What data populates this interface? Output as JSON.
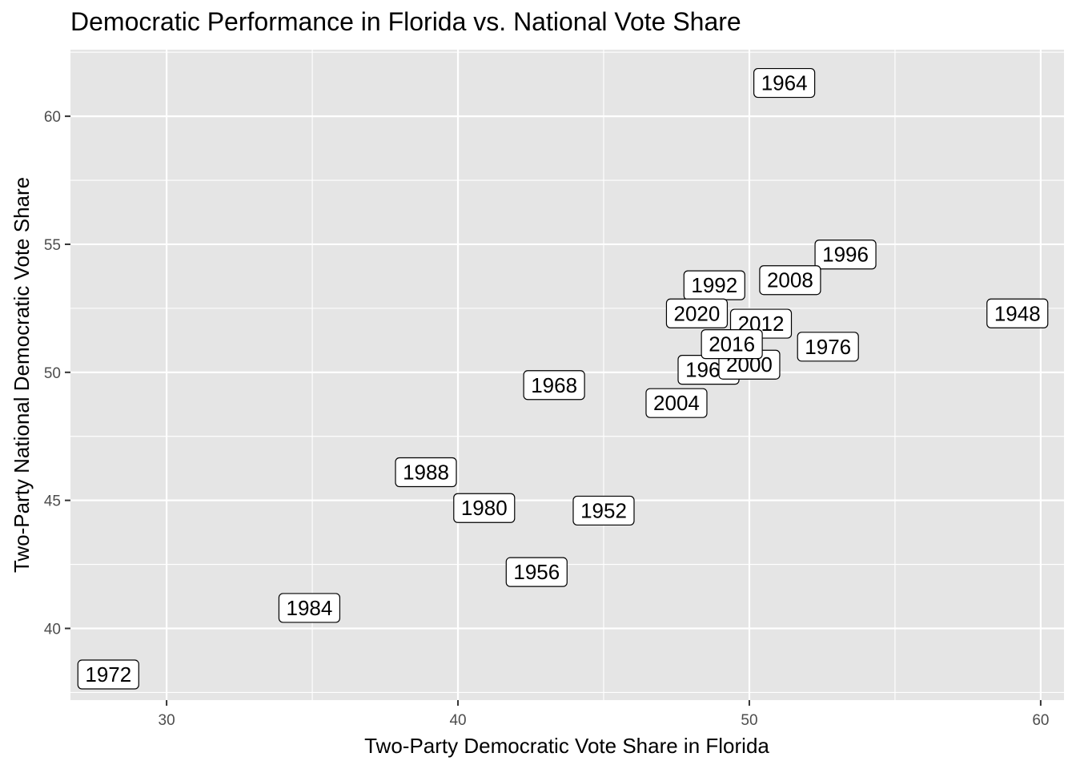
{
  "chart_data": {
    "type": "scatter",
    "title": "Democratic Performance in Florida vs. National Vote Share",
    "xlabel": "Two-Party Democratic Vote Share in Florida",
    "ylabel": "Two-Party National Democratic Vote Share",
    "xlim": [
      26.7,
      60.8
    ],
    "ylim": [
      37.2,
      62.6
    ],
    "x_ticks": [
      30,
      40,
      50,
      60
    ],
    "y_ticks": [
      40,
      45,
      50,
      55,
      60
    ],
    "grid": true,
    "points": [
      {
        "label": "1948",
        "x": 59.2,
        "y": 52.3
      },
      {
        "label": "1952",
        "x": 45.0,
        "y": 44.6
      },
      {
        "label": "1956",
        "x": 42.7,
        "y": 42.2
      },
      {
        "label": "1960",
        "x": 48.6,
        "y": 50.1
      },
      {
        "label": "1964",
        "x": 51.2,
        "y": 61.3
      },
      {
        "label": "1968",
        "x": 43.3,
        "y": 49.5
      },
      {
        "label": "1972",
        "x": 28.0,
        "y": 38.2
      },
      {
        "label": "1976",
        "x": 52.7,
        "y": 51.0
      },
      {
        "label": "1980",
        "x": 40.9,
        "y": 44.7
      },
      {
        "label": "1984",
        "x": 34.9,
        "y": 40.8
      },
      {
        "label": "1988",
        "x": 38.9,
        "y": 46.1
      },
      {
        "label": "1992",
        "x": 48.8,
        "y": 53.4
      },
      {
        "label": "1996",
        "x": 53.3,
        "y": 54.6
      },
      {
        "label": "2000",
        "x": 50.0,
        "y": 50.3
      },
      {
        "label": "2004",
        "x": 47.5,
        "y": 48.8
      },
      {
        "label": "2008",
        "x": 51.4,
        "y": 53.6
      },
      {
        "label": "2012",
        "x": 50.4,
        "y": 51.9
      },
      {
        "label": "2016",
        "x": 49.4,
        "y": 51.1
      },
      {
        "label": "2020",
        "x": 48.2,
        "y": 52.3
      }
    ]
  }
}
